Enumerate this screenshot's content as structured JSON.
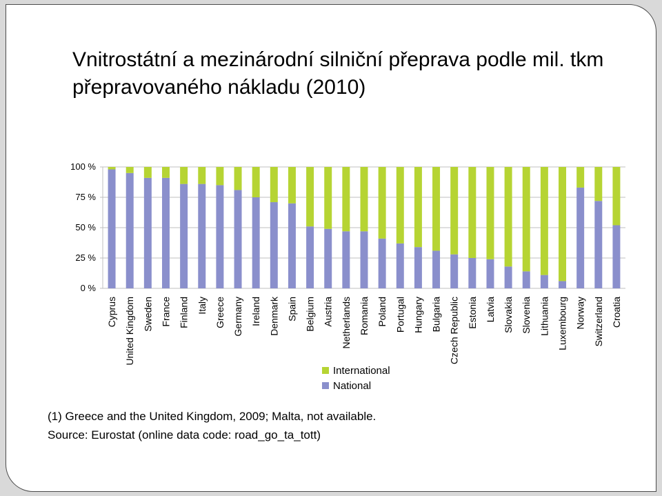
{
  "title": "Vnitrostátní a mezinárodní silniční přeprava podle mil. tkm přepravovaného nákladu (2010)",
  "colors": {
    "national": "#8a8fcc",
    "international": "#b6d433",
    "slide_border": "#4a4a4a",
    "frame": "#d9d9d9"
  },
  "footnotes": {
    "note": "(1) Greece and the United Kingdom, 2009; Malta, not available.",
    "source": "Source: Eurostat (online data code: road_go_ta_tott)"
  },
  "chart_data": {
    "type": "bar",
    "stacked": true,
    "percent": true,
    "categories": [
      "Cyprus",
      "United Kingdom",
      "Sweden",
      "France",
      "Finland",
      "Italy",
      "Greece",
      "Germany",
      "Ireland",
      "Denmark",
      "Spain",
      "Belgium",
      "Austria",
      "Netherlands",
      "Romania",
      "Poland",
      "Portugal",
      "Hungary",
      "Bulgaria",
      "Czech Republic",
      "Estonia",
      "Latvia",
      "Slovakia",
      "Slovenia",
      "Lithuania",
      "Luxembourg",
      "Norway",
      "Switzerland",
      "Croatia"
    ],
    "series": [
      {
        "name": "National",
        "color": "#8a8fcc",
        "values": [
          98,
          95,
          91,
          91,
          86,
          86,
          85,
          81,
          75,
          71,
          70,
          51,
          49,
          47,
          47,
          41,
          37,
          34,
          31,
          28,
          25,
          24,
          18,
          14,
          11,
          6,
          83,
          72,
          52
        ]
      },
      {
        "name": "International",
        "color": "#b6d433",
        "values": [
          2,
          5,
          9,
          9,
          14,
          14,
          15,
          19,
          25,
          29,
          30,
          49,
          51,
          53,
          53,
          59,
          63,
          66,
          69,
          72,
          75,
          76,
          82,
          86,
          89,
          94,
          17,
          28,
          48
        ]
      }
    ],
    "yticks": [
      "0 %",
      "25 %",
      "50 %",
      "75 %",
      "100 %"
    ],
    "ylim": [
      0,
      100
    ],
    "legend": [
      "International",
      "National"
    ],
    "legend_position": "bottom-center",
    "grid": true
  }
}
